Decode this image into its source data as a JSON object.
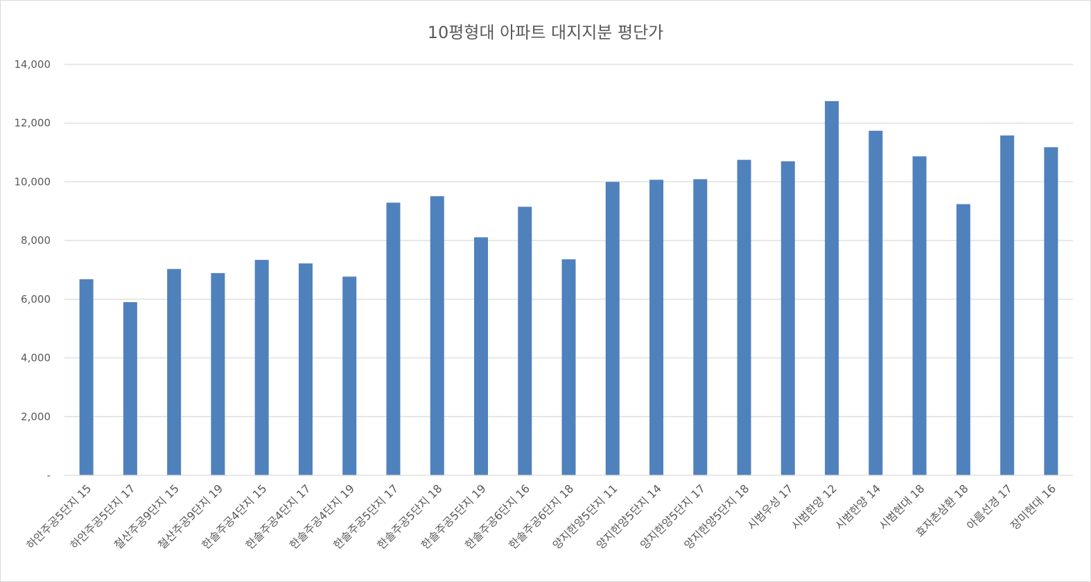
{
  "chart_data": {
    "type": "bar",
    "title": "10평형대 아파트 대지지분 평단가",
    "xlabel": "",
    "ylabel": "",
    "ylim": [
      0,
      14000
    ],
    "yticks": [
      0,
      2000,
      4000,
      6000,
      8000,
      10000,
      12000,
      14000
    ],
    "ytick_labels": [
      "-",
      "2,000",
      "4,000",
      "6,000",
      "8,000",
      "10,000",
      "12,000",
      "14,000"
    ],
    "grid": true,
    "legend": "none",
    "bar_color": "#4f81bd",
    "grid_color": "#d9d9d9",
    "text_color": "#595959",
    "categories": [
      "하안주공5단지 15",
      "하안주공5단지 17",
      "철산주공9단지 15",
      "철산주공9단지 19",
      "한솔주공4단지 15",
      "한솔주공4단지 17",
      "한솔주공4단지 19",
      "한솔주공5단지 17",
      "한솔주공5단지 18",
      "한솔주공5단지 19",
      "한솔주공6단지 16",
      "한솔주공6단지 18",
      "양지한양5단지 11",
      "양지한양5단지 14",
      "양지한양5단지 17",
      "양지한양5단지 18",
      "시범우성 17",
      "시범한양 12",
      "시범한양 14",
      "시범현대 18",
      "효자촌삼환 18",
      "아름선경 17",
      "장미현대 16"
    ],
    "values": [
      6680,
      5900,
      7030,
      6890,
      7340,
      7220,
      6770,
      9290,
      9510,
      8110,
      9150,
      7360,
      10000,
      10070,
      10090,
      10750,
      10700,
      12750,
      11740,
      10870,
      9240,
      11580,
      11180
    ]
  }
}
